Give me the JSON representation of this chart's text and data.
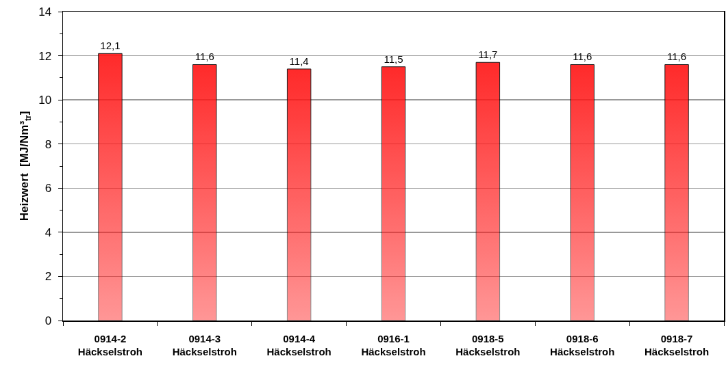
{
  "chart_data": {
    "type": "bar",
    "categories": [
      "0914-2\nHäckselstroh",
      "0914-3\nHäckselstroh",
      "0914-4\nHäckselstroh",
      "0916-1\nHäckselstroh",
      "0918-5\nHäckselstroh",
      "0918-6\nHäckselstroh",
      "0918-7\nHäckselstroh"
    ],
    "values": [
      12.1,
      11.6,
      11.4,
      11.5,
      11.7,
      11.6,
      11.6
    ],
    "value_labels": [
      "12,1",
      "11,6",
      "11,4",
      "11,5",
      "11,7",
      "11,6",
      "11,6"
    ],
    "color": "#ff1414",
    "ylabel": "Heizwert  [MJ/Nm³$_{tr}$]",
    "ylim": [
      0,
      14
    ],
    "yticks": [
      0,
      {
        "value": 1,
        "label": null
      },
      2,
      {
        "value": 3,
        "label": null
      },
      4,
      {
        "value": 5,
        "label": null
      },
      6,
      {
        "value": 7,
        "label": null
      },
      8,
      {
        "value": 9,
        "label": null
      },
      10,
      {
        "value": 11,
        "label": null
      },
      12,
      {
        "value": 13,
        "label": null
      },
      14
    ],
    "grid": "y"
  }
}
